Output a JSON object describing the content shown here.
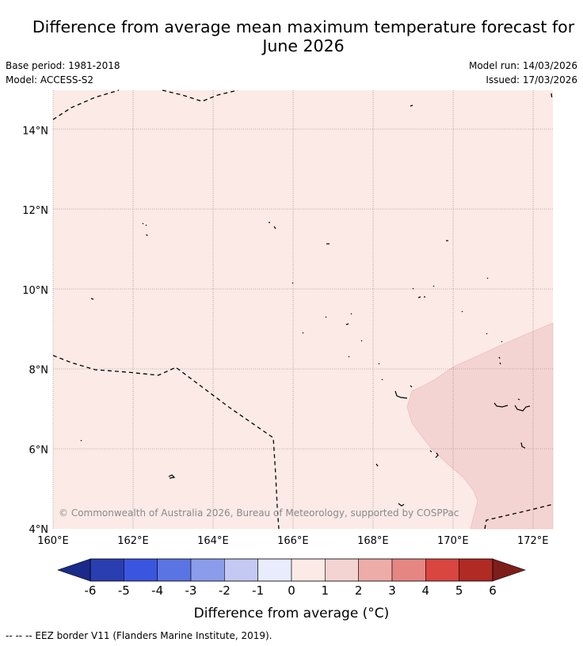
{
  "header": {
    "title_line1": "Difference from average mean maximum temperature forecast for",
    "title_line2": "June 2026",
    "base_period": "Base period: 1981-2018",
    "model": "Model: ACCESS-S2",
    "model_run": "Model run: 14/03/2026",
    "issued": "Issued: 17/03/2026"
  },
  "map": {
    "lon_range": [
      160,
      172.5
    ],
    "lat_range": [
      4,
      15
    ],
    "lon_ticks": [
      {
        "value": 160,
        "label": "160°E"
      },
      {
        "value": 162,
        "label": "162°E"
      },
      {
        "value": 164,
        "label": "164°E"
      },
      {
        "value": 166,
        "label": "166°E"
      },
      {
        "value": 168,
        "label": "168°E"
      },
      {
        "value": 170,
        "label": "170°E"
      },
      {
        "value": 172,
        "label": "172°E"
      }
    ],
    "lat_ticks": [
      {
        "value": 4,
        "label": "4°N"
      },
      {
        "value": 6,
        "label": "6°N"
      },
      {
        "value": 8,
        "label": "8°N"
      },
      {
        "value": 10,
        "label": "10°N"
      },
      {
        "value": 12,
        "label": "12°N"
      },
      {
        "value": 14,
        "label": "14°N"
      }
    ],
    "base_category_color": "#fbeae6",
    "warm_region_color": "#f4d4d2",
    "warm_region_category": "1 to 2",
    "copyright": "© Commonwealth of Australia 2026, Bureau of Meteorology, supported by COSPPac"
  },
  "colorbar": {
    "label": "Difference from average (°C)",
    "ticks": [
      "-6",
      "-5",
      "-4",
      "-3",
      "-2",
      "-1",
      "0",
      "1",
      "2",
      "3",
      "4",
      "5",
      "6"
    ],
    "colors": [
      "#2a3eb1",
      "#3a56e0",
      "#5b74e4",
      "#8b9cec",
      "#c3c9f3",
      "#e8ecfc",
      "#fbeae6",
      "#f4d4d2",
      "#eeaca8",
      "#e68682",
      "#d9463f",
      "#b12a24"
    ],
    "below_color": "#1a2a8a",
    "above_color": "#7e1e1a"
  },
  "footer": {
    "legend": "--  --  -- EEZ border V11 (Flanders Marine Institute, 2019)."
  }
}
